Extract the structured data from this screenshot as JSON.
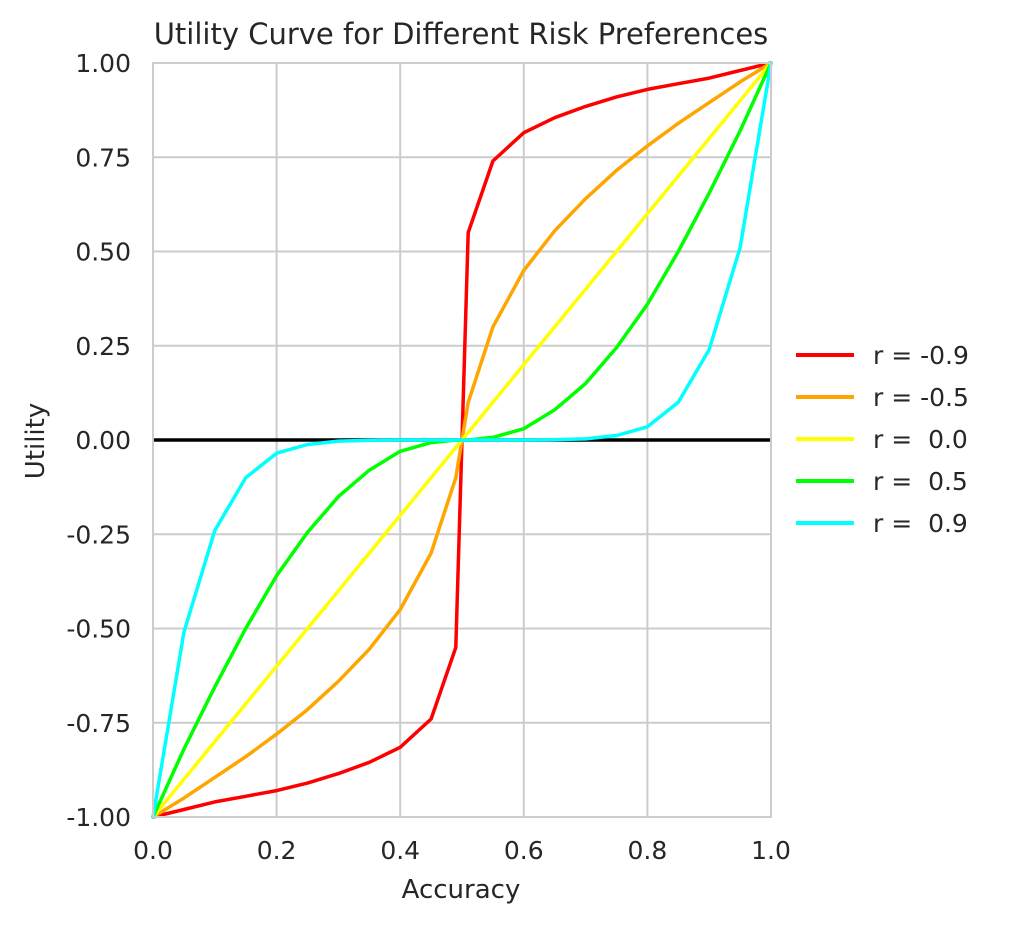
{
  "chart_data": {
    "type": "line",
    "title": "Utility Curve for Different Risk Preferences",
    "xlabel": "Accuracy",
    "ylabel": "Utility",
    "xlim": [
      0.0,
      1.0
    ],
    "ylim": [
      -1.0,
      1.0
    ],
    "x_ticks": [
      "0.0",
      "0.2",
      "0.4",
      "0.6",
      "0.8",
      "1.0"
    ],
    "y_ticks": [
      "1.00",
      "0.75",
      "0.50",
      "0.25",
      "0.00",
      "-0.25",
      "-0.50",
      "-0.75",
      "-1.00"
    ],
    "grid": true,
    "legend_position": "right",
    "reference_line": {
      "y": 0.0,
      "color": "#000000"
    },
    "x": [
      0.0,
      0.05,
      0.1,
      0.15,
      0.2,
      0.25,
      0.3,
      0.35,
      0.4,
      0.45,
      0.49,
      0.5,
      0.51,
      0.55,
      0.6,
      0.65,
      0.7,
      0.75,
      0.8,
      0.85,
      0.9,
      0.95,
      1.0
    ],
    "series": [
      {
        "name": "r = -0.9",
        "color": "#ff0000",
        "values": [
          -1.0,
          -0.98,
          -0.96,
          -0.945,
          -0.93,
          -0.91,
          -0.885,
          -0.855,
          -0.815,
          -0.74,
          -0.55,
          0.0,
          0.55,
          0.74,
          0.815,
          0.855,
          0.885,
          0.91,
          0.93,
          0.945,
          0.96,
          0.98,
          1.0
        ]
      },
      {
        "name": "r = -0.5",
        "color": "#ffa500",
        "values": [
          -1.0,
          -0.95,
          -0.895,
          -0.84,
          -0.78,
          -0.715,
          -0.64,
          -0.555,
          -0.45,
          -0.3,
          -0.1,
          0.0,
          0.1,
          0.3,
          0.45,
          0.555,
          0.64,
          0.715,
          0.78,
          0.84,
          0.895,
          0.95,
          1.0
        ]
      },
      {
        "name": "r =  0.0",
        "color": "#ffff00",
        "values": [
          -1.0,
          -0.9,
          -0.8,
          -0.7,
          -0.6,
          -0.5,
          -0.4,
          -0.3,
          -0.2,
          -0.1,
          -0.02,
          0.0,
          0.02,
          0.1,
          0.2,
          0.3,
          0.4,
          0.5,
          0.6,
          0.7,
          0.8,
          0.9,
          1.0
        ]
      },
      {
        "name": "r =  0.5",
        "color": "#00ff00",
        "values": [
          -1.0,
          -0.82,
          -0.655,
          -0.5,
          -0.36,
          -0.245,
          -0.15,
          -0.08,
          -0.03,
          -0.007,
          0.0,
          0.0,
          0.0,
          0.007,
          0.03,
          0.08,
          0.15,
          0.245,
          0.36,
          0.5,
          0.655,
          0.82,
          1.0
        ]
      },
      {
        "name": "r =  0.9",
        "color": "#00ffff",
        "values": [
          -1.0,
          -0.51,
          -0.24,
          -0.1,
          -0.035,
          -0.012,
          -0.003,
          -0.001,
          0.0,
          0.0,
          0.0,
          0.0,
          0.0,
          0.0,
          0.0,
          0.001,
          0.003,
          0.012,
          0.035,
          0.1,
          0.24,
          0.51,
          1.0
        ]
      }
    ]
  }
}
